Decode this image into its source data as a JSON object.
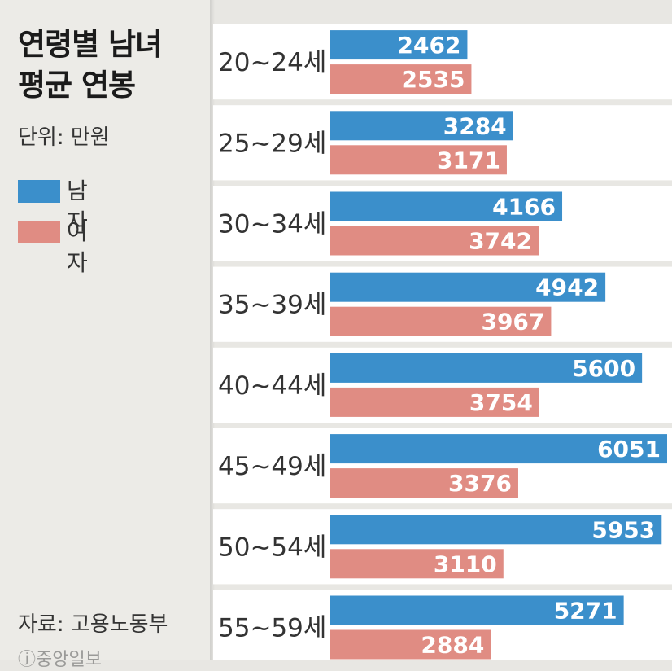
{
  "title_lines": [
    "연령별 남녀",
    "평균 연봉"
  ],
  "unit": "단위: 만원",
  "source": "자료: 고용노동부",
  "publisher": "ⓙ중앙일보",
  "colors": {
    "male": "#3b8fcb",
    "female": "#e08c83",
    "panel": "#ffffff",
    "sidebar": "#ecebe7"
  },
  "chart_data": {
    "type": "bar",
    "orientation": "horizontal",
    "title": "연령별 남녀 평균 연봉",
    "unit": "단위: 만원",
    "categories": [
      "20~24세",
      "25~29세",
      "30~34세",
      "35~39세",
      "40~44세",
      "45~49세",
      "50~54세",
      "55~59세"
    ],
    "series": [
      {
        "name": "남자",
        "color": "#3b8fcb",
        "values": [
          2462,
          3284,
          4166,
          4942,
          5600,
          6051,
          5953,
          5271
        ]
      },
      {
        "name": "여자",
        "color": "#e08c83",
        "values": [
          2535,
          3171,
          3742,
          3967,
          3754,
          3376,
          3110,
          2884
        ]
      }
    ],
    "xlim": [
      0,
      6051
    ],
    "legend_position": "left",
    "grid": false,
    "data_labels": true
  }
}
